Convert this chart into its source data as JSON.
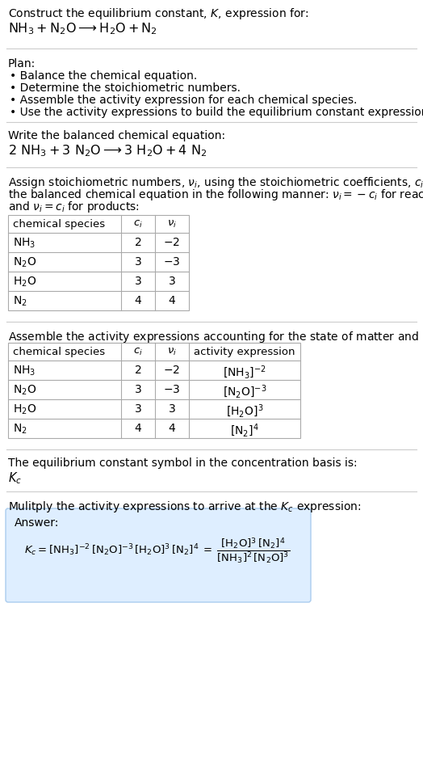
{
  "bg_color": "#ffffff",
  "text_color": "#000000",
  "title_line1": "Construct the equilibrium constant, $K$, expression for:",
  "title_line2": "$\\mathrm{NH_3 + N_2O \\longrightarrow H_2O + N_2}$",
  "plan_header": "Plan:",
  "plan_bullets": [
    "• Balance the chemical equation.",
    "• Determine the stoichiometric numbers.",
    "• Assemble the activity expression for each chemical species.",
    "• Use the activity expressions to build the equilibrium constant expression."
  ],
  "balanced_header": "Write the balanced chemical equation:",
  "balanced_eq": "$2\\ \\mathrm{NH_3 + 3\\ N_2O \\longrightarrow 3\\ H_2O + 4\\ N_2}$",
  "stoich_intro_lines": [
    "Assign stoichiometric numbers, $\\nu_i$, using the stoichiometric coefficients, $c_i$, from",
    "the balanced chemical equation in the following manner: $\\nu_i = -c_i$ for reactants",
    "and $\\nu_i = c_i$ for products:"
  ],
  "table1_headers": [
    "chemical species",
    "$c_i$",
    "$\\nu_i$"
  ],
  "table1_rows": [
    [
      "$\\mathrm{NH_3}$",
      "2",
      "$-2$"
    ],
    [
      "$\\mathrm{N_2O}$",
      "3",
      "$-3$"
    ],
    [
      "$\\mathrm{H_2O}$",
      "3",
      "3"
    ],
    [
      "$\\mathrm{N_2}$",
      "4",
      "4"
    ]
  ],
  "activity_intro": "Assemble the activity expressions accounting for the state of matter and $\\nu_i$:",
  "table2_headers": [
    "chemical species",
    "$c_i$",
    "$\\nu_i$",
    "activity expression"
  ],
  "table2_rows": [
    [
      "$\\mathrm{NH_3}$",
      "2",
      "$-2$",
      "$[\\mathrm{NH_3}]^{-2}$"
    ],
    [
      "$\\mathrm{N_2O}$",
      "3",
      "$-3$",
      "$[\\mathrm{N_2O}]^{-3}$"
    ],
    [
      "$\\mathrm{H_2O}$",
      "3",
      "3",
      "$[\\mathrm{H_2O}]^3$"
    ],
    [
      "$\\mathrm{N_2}$",
      "4",
      "4",
      "$[\\mathrm{N_2}]^4$"
    ]
  ],
  "kc_intro": "The equilibrium constant symbol in the concentration basis is:",
  "kc_symbol": "$K_c$",
  "multiply_intro": "Mulitply the activity expressions to arrive at the $K_c$ expression:",
  "answer_label": "Answer:",
  "answer_box_color": "#deeeff",
  "answer_box_border": "#aaccee",
  "divider_color": "#cccccc",
  "table_border_color": "#aaaaaa"
}
